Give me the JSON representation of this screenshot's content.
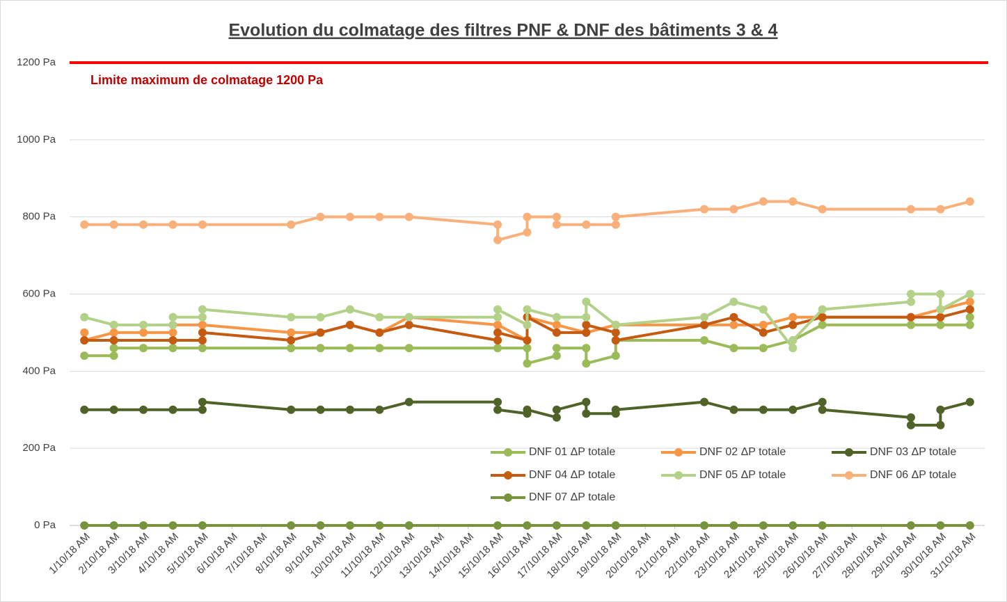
{
  "chart_data": {
    "type": "line",
    "title": "Evolution du colmatage des filtres PNF & DNF des bâtiments 3 & 4",
    "annotation": "Limite maximum de colmatage 1200 Pa",
    "threshold": 1200,
    "threshold_color": "#ff0000",
    "ylim": [
      0,
      1200
    ],
    "yticks": [
      {
        "value": 0,
        "label": "0 Pa"
      },
      {
        "value": 200,
        "label": "200 Pa"
      },
      {
        "value": 400,
        "label": "400 Pa"
      },
      {
        "value": 600,
        "label": "600 Pa"
      },
      {
        "value": 800,
        "label": "800 Pa"
      },
      {
        "value": 1000,
        "label": "1000 Pa"
      },
      {
        "value": 1200,
        "label": "1200 Pa"
      }
    ],
    "xlim": [
      0.5,
      31.5
    ],
    "xticks": [
      {
        "value": 1,
        "label": "1/10/18 AM"
      },
      {
        "value": 2,
        "label": "2/10/18 AM"
      },
      {
        "value": 3,
        "label": "3/10/18 AM"
      },
      {
        "value": 4,
        "label": "4/10/18 AM"
      },
      {
        "value": 5,
        "label": "5/10/18 AM"
      },
      {
        "value": 6,
        "label": "6/10/18 AM"
      },
      {
        "value": 7,
        "label": "7/10/18 AM"
      },
      {
        "value": 8,
        "label": "8/10/18 AM"
      },
      {
        "value": 9,
        "label": "9/10/18 AM"
      },
      {
        "value": 10,
        "label": "10/10/18 AM"
      },
      {
        "value": 11,
        "label": "11/10/18 AM"
      },
      {
        "value": 12,
        "label": "12/10/18 AM"
      },
      {
        "value": 13,
        "label": "13/10/18 AM"
      },
      {
        "value": 14,
        "label": "14/10/18 AM"
      },
      {
        "value": 15,
        "label": "15/10/18 AM"
      },
      {
        "value": 16,
        "label": "16/10/18 AM"
      },
      {
        "value": 17,
        "label": "17/10/18 AM"
      },
      {
        "value": 18,
        "label": "18/10/18 AM"
      },
      {
        "value": 19,
        "label": "19/10/18 AM"
      },
      {
        "value": 20,
        "label": "20/10/18 AM"
      },
      {
        "value": 21,
        "label": "21/10/18 AM"
      },
      {
        "value": 22,
        "label": "22/10/18 AM"
      },
      {
        "value": 23,
        "label": "23/10/18 AM"
      },
      {
        "value": 24,
        "label": "24/10/18 AM"
      },
      {
        "value": 25,
        "label": "25/10/18 AM"
      },
      {
        "value": 26,
        "label": "26/10/18 AM"
      },
      {
        "value": 27,
        "label": "27/10/18 AM"
      },
      {
        "value": 28,
        "label": "28/10/18 AM"
      },
      {
        "value": 29,
        "label": "29/10/18 AM"
      },
      {
        "value": 30,
        "label": "30/10/18 AM"
      },
      {
        "value": 31,
        "label": "31/10/18 AM"
      }
    ],
    "grid": true,
    "legend": "bottom-right",
    "series": [
      {
        "name": "DNF 07 ΔP totale",
        "color": "#77933c",
        "x": [
          1,
          2,
          3,
          4,
          5,
          8,
          9,
          10,
          11,
          12,
          15,
          16,
          17,
          18,
          19,
          22,
          23,
          24,
          25,
          26,
          29,
          30,
          31
        ],
        "values": [
          0,
          0,
          0,
          0,
          0,
          0,
          0,
          0,
          0,
          0,
          0,
          0,
          0,
          0,
          0,
          0,
          0,
          0,
          0,
          0,
          0,
          0,
          0
        ]
      },
      {
        "name": "DNF 03 ΔP totale",
        "color": "#4f6228",
        "x": [
          1,
          2,
          3,
          4,
          5,
          5,
          8,
          9,
          10,
          11,
          12,
          15,
          15,
          16,
          16,
          17,
          17,
          18,
          18,
          19,
          19,
          22,
          23,
          24,
          25,
          26,
          26,
          29,
          29,
          30,
          30,
          31
        ],
        "values": [
          300,
          300,
          300,
          300,
          300,
          320,
          300,
          300,
          300,
          300,
          320,
          320,
          300,
          290,
          300,
          280,
          300,
          320,
          290,
          290,
          300,
          320,
          300,
          300,
          300,
          320,
          300,
          280,
          260,
          260,
          300,
          320
        ]
      },
      {
        "name": "DNF 06 ΔP totale",
        "color": "#fab07a",
        "x": [
          1,
          2,
          3,
          4,
          5,
          8,
          9,
          10,
          11,
          12,
          15,
          15,
          16,
          16,
          17,
          17,
          18,
          19,
          19,
          22,
          23,
          24,
          25,
          26,
          29,
          30,
          31
        ],
        "values": [
          780,
          780,
          780,
          780,
          780,
          780,
          800,
          800,
          800,
          800,
          780,
          740,
          760,
          800,
          800,
          780,
          780,
          780,
          800,
          820,
          820,
          840,
          840,
          820,
          820,
          820,
          840
        ]
      },
      {
        "name": "DNF 01 ΔP totale",
        "color": "#9bbb59",
        "x": [
          1,
          2,
          2,
          3,
          4,
          5,
          8,
          9,
          10,
          11,
          12,
          15,
          16,
          16,
          17,
          17,
          18,
          18,
          19,
          19,
          22,
          23,
          24,
          25,
          26,
          29,
          30,
          31,
          31
        ],
        "values": [
          440,
          440,
          460,
          460,
          460,
          460,
          460,
          460,
          460,
          460,
          460,
          460,
          460,
          420,
          440,
          460,
          460,
          420,
          440,
          480,
          480,
          460,
          460,
          480,
          520,
          520,
          520,
          520,
          540
        ]
      },
      {
        "name": "DNF 02 ΔP totale",
        "color": "#f79646",
        "x": [
          1,
          1,
          2,
          3,
          4,
          4,
          5,
          8,
          9,
          10,
          11,
          12,
          15,
          16,
          16,
          17,
          18,
          19,
          22,
          23,
          24,
          25,
          26,
          29,
          30,
          31
        ],
        "values": [
          500,
          480,
          500,
          500,
          500,
          520,
          520,
          500,
          500,
          520,
          500,
          540,
          520,
          480,
          540,
          520,
          500,
          520,
          520,
          520,
          520,
          540,
          540,
          540,
          560,
          580
        ]
      },
      {
        "name": "DNF 04 ΔP totale",
        "color": "#c55a11",
        "x": [
          1,
          2,
          4,
          5,
          5,
          8,
          9,
          10,
          11,
          12,
          15,
          15,
          16,
          16,
          17,
          18,
          18,
          19,
          19,
          22,
          23,
          24,
          25,
          26,
          29,
          30,
          31
        ],
        "values": [
          480,
          480,
          480,
          480,
          500,
          480,
          500,
          520,
          500,
          520,
          480,
          500,
          480,
          540,
          500,
          500,
          520,
          500,
          480,
          520,
          540,
          500,
          520,
          540,
          540,
          540,
          560
        ]
      },
      {
        "name": "DNF 05 ΔP totale",
        "color": "#b3d189",
        "x": [
          1,
          2,
          3,
          4,
          4,
          5,
          5,
          8,
          9,
          10,
          11,
          12,
          15,
          15,
          16,
          16,
          17,
          18,
          18,
          19,
          22,
          23,
          24,
          25,
          25,
          26,
          29,
          29,
          30,
          30,
          31
        ],
        "values": [
          540,
          520,
          520,
          520,
          540,
          540,
          560,
          540,
          540,
          560,
          540,
          540,
          540,
          560,
          520,
          560,
          540,
          540,
          580,
          520,
          540,
          580,
          560,
          460,
          480,
          560,
          580,
          600,
          600,
          560,
          600
        ]
      }
    ]
  }
}
